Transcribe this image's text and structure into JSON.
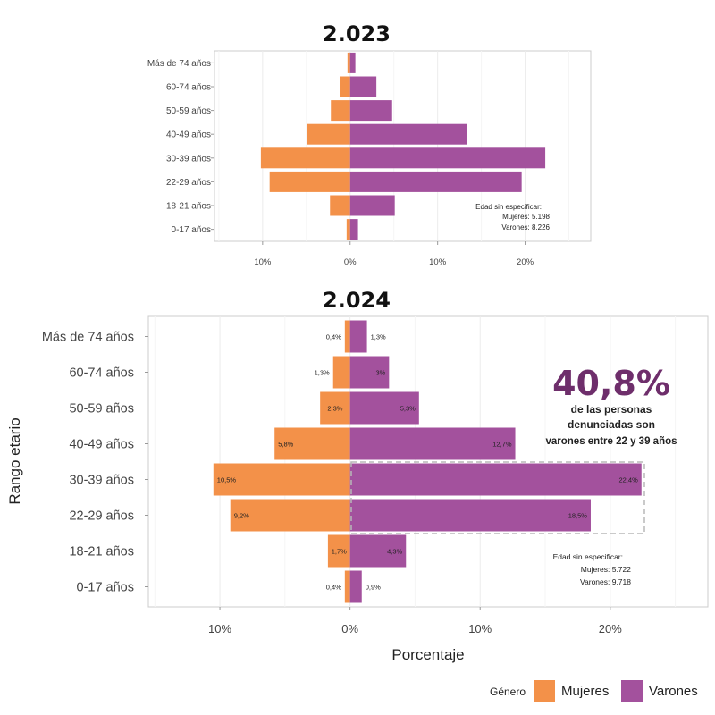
{
  "colors": {
    "mujeres": "#F39149",
    "varones": "#A3519D",
    "highlight": "#6E2E6B"
  },
  "chart_data": [
    {
      "type": "bar",
      "orientation": "horizontal-pyramid",
      "title": "2.023",
      "categories": [
        "0-17 años",
        "18-21 años",
        "22-29 años",
        "30-39 años",
        "40-49 años",
        "50-59 años",
        "60-74 años",
        "Más de 74 años"
      ],
      "series": [
        {
          "name": "Mujeres",
          "values": [
            0.4,
            2.3,
            9.2,
            10.2,
            4.9,
            2.2,
            1.2,
            0.3
          ]
        },
        {
          "name": "Varones",
          "values": [
            0.9,
            5.1,
            19.6,
            22.3,
            13.4,
            4.8,
            3.0,
            0.6
          ]
        }
      ],
      "xlim": [
        -15.5,
        27.5
      ],
      "xticks": [
        -10,
        0,
        10,
        20
      ],
      "xtick_labels": [
        "10%",
        "0%",
        "10%",
        "20%"
      ],
      "note": {
        "line1": "Edad sin especificar:",
        "line2": "Mujeres: 5.198",
        "line3": "Varones: 8.226"
      }
    },
    {
      "type": "bar",
      "orientation": "horizontal-pyramid",
      "title": "2.024",
      "ylabel": "Rango etario",
      "xlabel": "Porcentaje",
      "categories": [
        "0-17 años",
        "18-21 años",
        "22-29 años",
        "30-39 años",
        "40-49 años",
        "50-59 años",
        "60-74 años",
        "Más de 74 años"
      ],
      "series": [
        {
          "name": "Mujeres",
          "values": [
            0.4,
            1.7,
            9.2,
            10.5,
            5.8,
            2.3,
            1.3,
            0.4
          ],
          "labels": [
            "0,4%",
            "1,7%",
            "9,2%",
            "10,5%",
            "5,8%",
            "2,3%",
            "1,3%",
            "0,4%"
          ]
        },
        {
          "name": "Varones",
          "values": [
            0.9,
            4.3,
            18.5,
            22.4,
            12.7,
            5.3,
            3.0,
            1.3
          ],
          "labels": [
            "0,9%",
            "4,3%",
            "18,5%",
            "22,4%",
            "12,7%",
            "5,3%",
            "3%",
            "1,3%"
          ]
        }
      ],
      "xlim": [
        -15.5,
        27.5
      ],
      "xticks": [
        -10,
        0,
        10,
        20
      ],
      "xtick_labels": [
        "10%",
        "0%",
        "10%",
        "20%"
      ],
      "note": {
        "line1": "Edad sin especificar:",
        "line2": "Mujeres: 5.722",
        "line3": "Varones: 9.718"
      },
      "annotation": {
        "value": "40,8%",
        "line1": "de las personas",
        "line2": "denunciadas son",
        "line3": "varones entre 22 y 39 años"
      }
    }
  ],
  "legend": {
    "title": "Género",
    "items": [
      "Mujeres",
      "Varones"
    ]
  }
}
